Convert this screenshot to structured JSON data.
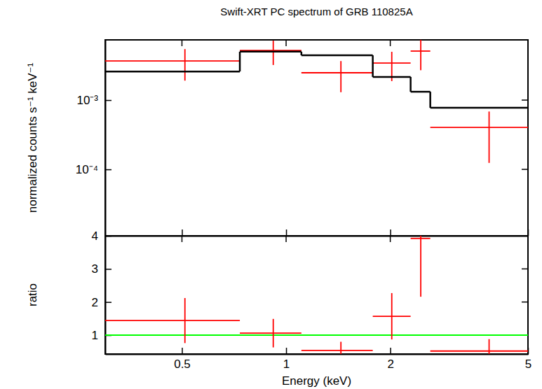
{
  "chart_data": [
    {
      "type": "scatter",
      "title": "Swift-XRT PC spectrum of GRB 110825A",
      "ylabel": "normalized counts s⁻¹ keV⁻¹",
      "log": true,
      "tick_labels": "y",
      "xlim": [
        0.3,
        5
      ],
      "ylim": [
        1.1e-05,
        0.0074
      ],
      "xticks": [
        0.5,
        1,
        2,
        5
      ],
      "yticks": [
        {
          "value": 0.0001,
          "label": "10⁻⁴"
        },
        {
          "value": 0.001,
          "label": "10⁻³"
        }
      ],
      "x": [
        0.51,
        0.918,
        1.44,
        2.02,
        2.45,
        3.86
      ],
      "bins": [
        0.3,
        0.735,
        1.107,
        1.78,
        2.29,
        2.61,
        5
      ],
      "series": [
        {
          "type": "errorbar",
          "color": "#ff0000",
          "values": [
            0.00368,
            0.00521,
            0.00248,
            0.00343,
            0.0051,
            0.000404
          ],
          "errors": [
            0.00177,
            0.002,
            0.00118,
            0.00155,
            0.0024,
            0.00028
          ]
        },
        {
          "type": "step",
          "color": "#000000",
          "values": [
            0.00259,
            0.005,
            0.00443,
            0.00216,
            0.00132,
            0.000774
          ]
        }
      ]
    },
    {
      "type": "scatter",
      "xlabel": "Energy (keV)",
      "ylabel": "ratio",
      "log": "x",
      "xlim": [
        0.3,
        5
      ],
      "ylim": [
        0.43,
        4
      ],
      "xticks": [
        0.5,
        1,
        2,
        5
      ],
      "yticks": [
        1,
        2,
        3,
        4
      ],
      "x": [
        0.51,
        0.918,
        1.44,
        2.02,
        2.45,
        3.86
      ],
      "bins": [
        0.3,
        0.735,
        1.107,
        1.78,
        2.29,
        2.61,
        5
      ],
      "series": [
        {
          "type": "errorbar",
          "color": "#ff0000",
          "values": [
            1.44,
            1.06,
            0.54,
            1.57,
            3.92,
            0.52
          ],
          "errors": [
            0.68,
            0.43,
            0.26,
            0.7,
            1.76,
            0.36
          ]
        }
      ],
      "reference_line": {
        "value": 1,
        "color": "#00ff00"
      }
    }
  ]
}
